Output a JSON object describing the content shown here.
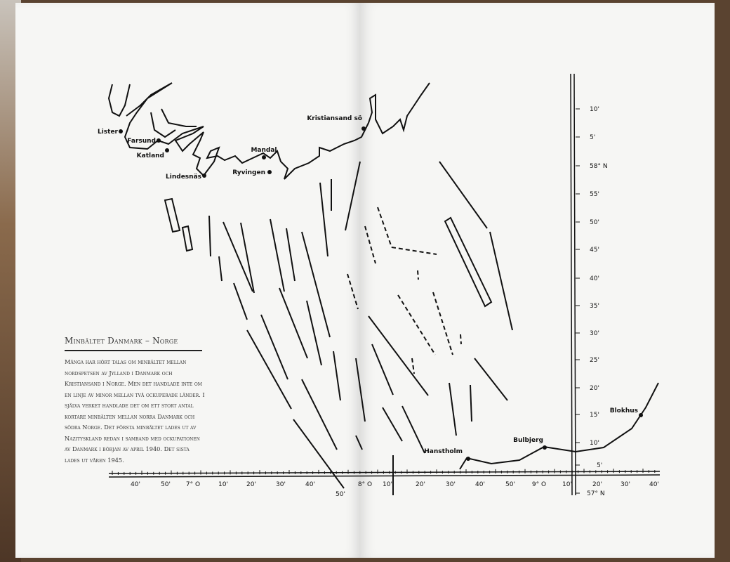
{
  "sidebar_text": {
    "title": "Minbältet Danmark – Norge",
    "body": "Många har hört talas om minbältet mellan nordspetsen av Jylland i Danmark och Kristiansand i Norge. Men det handlade inte om en linje av minor mellan två ockuperade länder. I själva verket handlade det om ett stort antal kortare minbälten mellan norra Danmark och södra Norge. Det första minbältet lades ut av Nazityskland redan i samband med ockupationen av Danmark i början av april 1940. Det sista lades ut våren 1945."
  },
  "places": [
    "Lister",
    "Farsund",
    "Katland",
    "Lindesnäs",
    "Mandal",
    "Ryvingen",
    "Kristiansand sö",
    "Hanstholm",
    "Bulbjerg",
    "Blokhus"
  ],
  "longitude_ticks": [
    "40'",
    "50'",
    "7° O",
    "10'",
    "20'",
    "30'",
    "40'",
    "50'",
    "8° O",
    "10'",
    "20'",
    "30'",
    "40'",
    "50'",
    "9° O",
    "10'",
    "20'",
    "30'",
    "40'"
  ],
  "latitude_ticks": [
    "10'",
    "5'",
    "58° N",
    "55'",
    "50'",
    "45'",
    "40'",
    "35'",
    "30'",
    "25'",
    "20'",
    "15'",
    "10'",
    "5'",
    "57° N"
  ],
  "colors": {
    "ink": "#111111",
    "paper": "#f6f6f4"
  }
}
